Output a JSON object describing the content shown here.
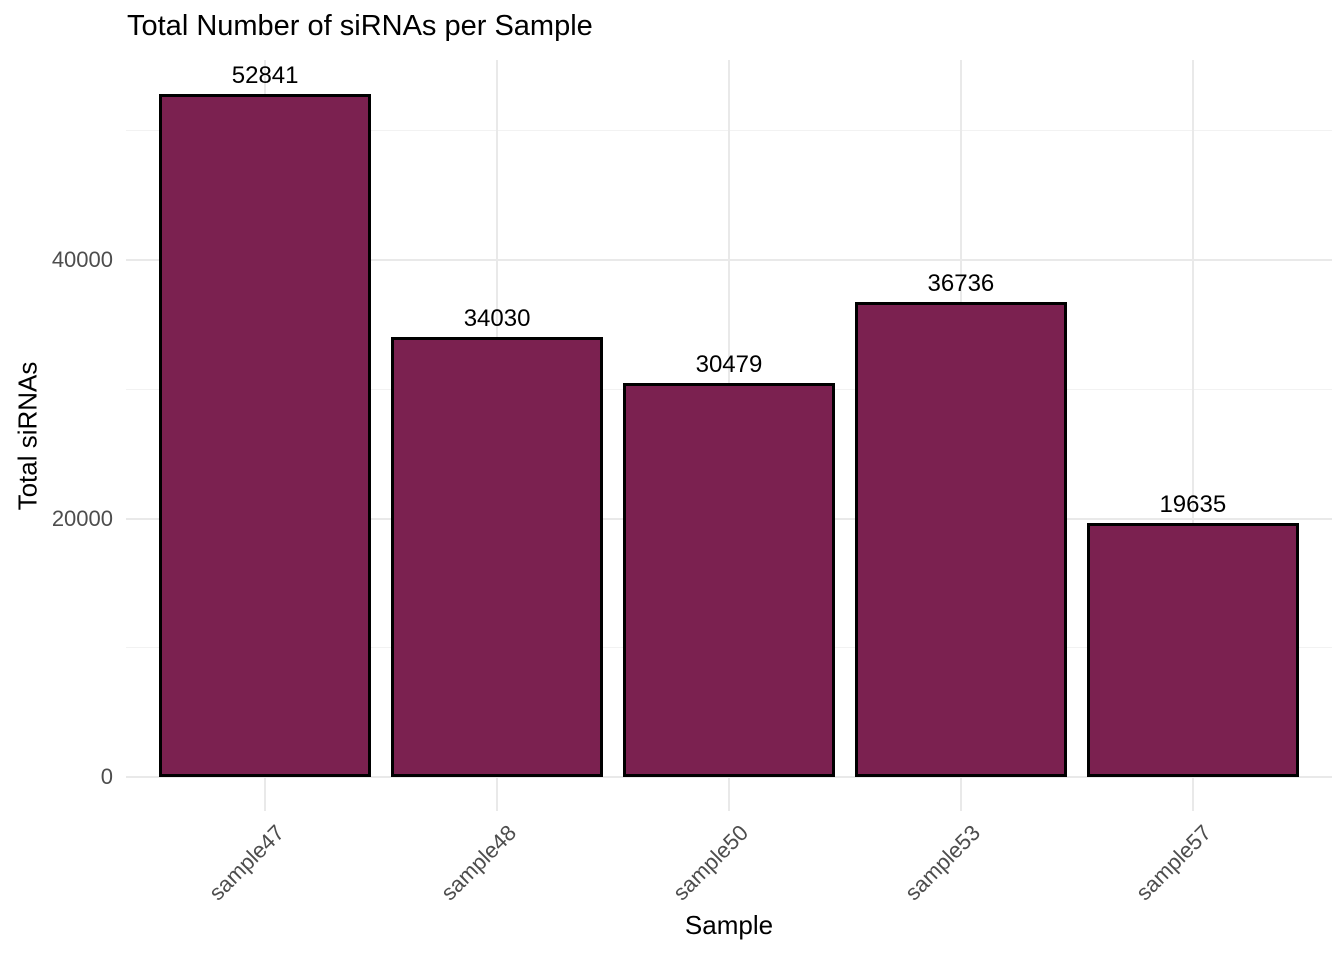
{
  "chart_data": {
    "type": "bar",
    "title": "Total Number of siRNAs per Sample",
    "xlabel": "Sample",
    "ylabel": "Total siRNAs",
    "categories": [
      "sample47",
      "sample48",
      "sample50",
      "sample53",
      "sample57"
    ],
    "values": [
      52841,
      34030,
      30479,
      36736,
      19635
    ],
    "bar_value_labels": [
      "52841",
      "34030",
      "30479",
      "36736",
      "19635"
    ],
    "yticks": [
      0,
      20000,
      40000
    ],
    "ytick_labels": [
      "0",
      "20000",
      "40000"
    ],
    "yminor": [
      10000,
      30000,
      50000
    ],
    "ylim": [
      -2650,
      55480
    ],
    "x_tick_rotation_deg": 45,
    "grid": "horizontal major+minor, vertical at bar centers",
    "legend": "none",
    "colors": {
      "bar_fill": "#7B2150",
      "bar_border": "#000000",
      "grid_major": "#E9E9E9",
      "grid_minor": "#F2F2F2",
      "axis_text": "#4D4D4D",
      "title_text": "#000000",
      "background": "#FFFFFF"
    }
  }
}
